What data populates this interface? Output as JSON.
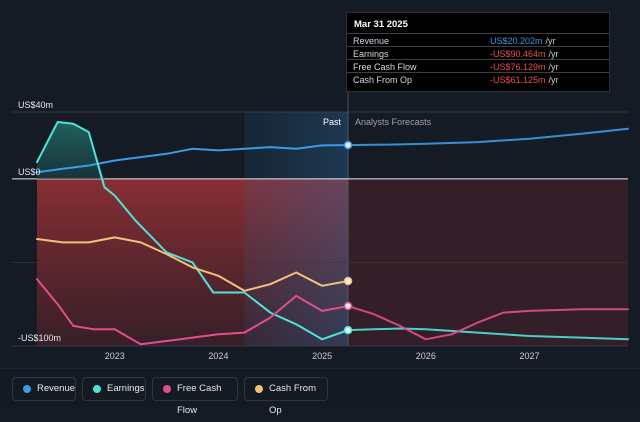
{
  "chart_data": {
    "type": "line",
    "y_labels": [
      {
        "text": "US$40m",
        "value": 40
      },
      {
        "text": "US$0",
        "value": 0
      },
      {
        "text": "-US$100m",
        "value": -100
      }
    ],
    "ylim": [
      -100,
      40
    ],
    "xlim": [
      2022.25,
      2027.95
    ],
    "x_ticks": [
      {
        "label": "2023",
        "value": 2023
      },
      {
        "label": "2024",
        "value": 2024
      },
      {
        "label": "2025",
        "value": 2025
      },
      {
        "label": "2026",
        "value": 2026
      },
      {
        "label": "2027",
        "value": 2027
      }
    ],
    "past_label": "Past",
    "forecast_label": "Analysts Forecasts",
    "divider_x": 2025.25,
    "highlight_range": [
      2024.25,
      2025.25
    ],
    "series": [
      {
        "name": "Revenue",
        "color": "#3b9be8",
        "points": [
          [
            2022.25,
            4
          ],
          [
            2022.5,
            6
          ],
          [
            2022.75,
            8
          ],
          [
            2023,
            11
          ],
          [
            2023.25,
            13
          ],
          [
            2023.5,
            15
          ],
          [
            2023.75,
            18
          ],
          [
            2024,
            17
          ],
          [
            2024.25,
            18
          ],
          [
            2024.5,
            19
          ],
          [
            2024.75,
            18
          ],
          [
            2025,
            20
          ],
          [
            2025.25,
            20.2
          ],
          [
            2025.5,
            20.4
          ],
          [
            2025.75,
            20.6
          ],
          [
            2026,
            21
          ],
          [
            2026.5,
            22
          ],
          [
            2027,
            24
          ],
          [
            2027.5,
            27
          ],
          [
            2027.95,
            30
          ]
        ]
      },
      {
        "name": "Earnings",
        "color": "#4ee3d6",
        "points": [
          [
            2022.25,
            10
          ],
          [
            2022.45,
            34
          ],
          [
            2022.6,
            33
          ],
          [
            2022.75,
            28
          ],
          [
            2022.9,
            -5
          ],
          [
            2023,
            -10
          ],
          [
            2023.2,
            -25
          ],
          [
            2023.5,
            -44
          ],
          [
            2023.75,
            -50
          ],
          [
            2023.95,
            -68
          ],
          [
            2024.25,
            -68
          ],
          [
            2024.5,
            -80
          ],
          [
            2024.75,
            -87
          ],
          [
            2025,
            -96
          ],
          [
            2025.25,
            -90.5
          ],
          [
            2025.5,
            -90
          ],
          [
            2025.75,
            -89.5
          ],
          [
            2026,
            -90
          ],
          [
            2026.5,
            -92
          ],
          [
            2027,
            -94
          ],
          [
            2027.5,
            -95
          ],
          [
            2027.95,
            -96
          ]
        ]
      },
      {
        "name": "Free Cash Flow",
        "color": "#e04f8a",
        "points": [
          [
            2022.25,
            -60
          ],
          [
            2022.45,
            -75
          ],
          [
            2022.6,
            -88
          ],
          [
            2022.8,
            -90
          ],
          [
            2023,
            -90
          ],
          [
            2023.25,
            -99
          ],
          [
            2023.5,
            -97
          ],
          [
            2023.75,
            -95
          ],
          [
            2024,
            -93
          ],
          [
            2024.25,
            -92
          ],
          [
            2024.5,
            -83
          ],
          [
            2024.75,
            -70
          ],
          [
            2025,
            -79
          ],
          [
            2025.25,
            -76.1
          ],
          [
            2025.5,
            -81
          ],
          [
            2025.75,
            -88
          ],
          [
            2026,
            -96
          ],
          [
            2026.25,
            -93
          ],
          [
            2026.5,
            -86
          ],
          [
            2026.75,
            -80
          ],
          [
            2027,
            -79
          ],
          [
            2027.5,
            -78
          ],
          [
            2027.95,
            -78
          ]
        ]
      },
      {
        "name": "Cash From Op",
        "color": "#f1c27c",
        "points": [
          [
            2022.25,
            -36
          ],
          [
            2022.5,
            -38
          ],
          [
            2022.75,
            -38
          ],
          [
            2023,
            -35
          ],
          [
            2023.25,
            -38
          ],
          [
            2023.5,
            -45
          ],
          [
            2023.75,
            -53
          ],
          [
            2024,
            -58
          ],
          [
            2024.25,
            -67
          ],
          [
            2024.5,
            -63
          ],
          [
            2024.75,
            -56
          ],
          [
            2025,
            -64
          ],
          [
            2025.25,
            -61.1
          ]
        ]
      }
    ]
  },
  "tooltip": {
    "date": "Mar 31 2025",
    "rows": [
      {
        "label": "Revenue",
        "value": "US$20.202m",
        "unit": "/yr",
        "color": "#3b9be8"
      },
      {
        "label": "Earnings",
        "value": "-US$90.464m",
        "unit": "/yr",
        "color": "#ef4b4b"
      },
      {
        "label": "Free Cash Flow",
        "value": "-US$76.129m",
        "unit": "/yr",
        "color": "#ef4b4b"
      },
      {
        "label": "Cash From Op",
        "value": "-US$61.125m",
        "unit": "/yr",
        "color": "#ef4b4b"
      }
    ]
  },
  "legend": [
    {
      "label": "Revenue",
      "color": "#3b9be8"
    },
    {
      "label": "Earnings",
      "color": "#4ee3d6"
    },
    {
      "label": "Free Cash Flow",
      "color": "#e04f8a"
    },
    {
      "label": "Cash From Op",
      "color": "#f1c27c"
    }
  ]
}
